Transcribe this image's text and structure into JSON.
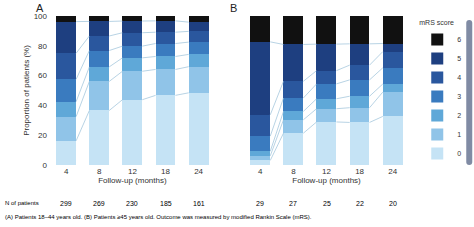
{
  "chart_data": [
    {
      "type": "bar",
      "title": "A",
      "stacked": true,
      "grid": false,
      "categories": [
        "4",
        "8",
        "12",
        "18",
        "24"
      ],
      "xlabel": "Follow-up (months)",
      "ylabel": "Proportion of patients (%)",
      "ylim": [
        0,
        100
      ],
      "yticks": [
        0,
        20,
        40,
        60,
        80,
        100
      ],
      "n_label": "N of patients",
      "n_patients": [
        299,
        269,
        230,
        185,
        161
      ],
      "series": [
        {
          "name": "0",
          "color": "#c5e3f5",
          "values": [
            16.25,
            36.58536585365854,
            43.82022471910112,
            46.73913043478261,
            48.45360824742268
          ]
        },
        {
          "name": "1",
          "color": "#90c4e8",
          "values": [
            16.25,
            19.51219512195122,
            19.101123595505616,
            17.391304347826086,
            17.52577319587629
          ]
        },
        {
          "name": "2",
          "color": "#5fa8d8",
          "values": [
            10.0,
            9.75609756097561,
            8.98876404494382,
            8.695652173913043,
            8.24742268041237
          ]
        },
        {
          "name": "3",
          "color": "#3a7bbf",
          "values": [
            15.0,
            10.975609756097562,
            7.865168539325842,
            8.695652173913043,
            8.24742268041237
          ]
        },
        {
          "name": "4",
          "color": "#2a579e",
          "values": [
            17.5,
            9.75609756097561,
            8.98876404494382,
            7.608695652173913,
            7.216494845360825
          ]
        },
        {
          "name": "5",
          "color": "#1e3f80",
          "values": [
            21.25,
            9.75609756097561,
            7.865168539325842,
            7.608695652173913,
            6.185567010309279
          ]
        },
        {
          "name": "6",
          "color": "#111111",
          "values": [
            3.75,
            3.658536585365854,
            3.3707865168539324,
            3.260869565217391,
            4.123711340206185
          ]
        }
      ]
    },
    {
      "type": "bar",
      "title": "B",
      "stacked": true,
      "grid": false,
      "tick_labels": "x",
      "categories": [
        "4",
        "8",
        "12",
        "18",
        "24"
      ],
      "xlabel": "Follow-up (months)",
      "ylim": [
        0,
        100
      ],
      "yticks": [
        0,
        20,
        40,
        60,
        80,
        100
      ],
      "n_patients": [
        29,
        27,
        25,
        22,
        20
      ],
      "legend": "right",
      "legend_title": "mRS score",
      "series": [
        {
          "name": "0",
          "color": "#c5e3f5",
          "values": [
            3.061224489795918,
            21.348314606741575,
            28.88888888888889,
            28.571428571428573,
            32.608695652173914
          ]
        },
        {
          "name": "1",
          "color": "#90c4e8",
          "values": [
            3.061224489795918,
            8.98876404494382,
            8.88888888888889,
            9.89010989010989,
            16.304347826086957
          ]
        },
        {
          "name": "2",
          "color": "#5fa8d8",
          "values": [
            3.061224489795918,
            5.617977528089887,
            6.666666666666667,
            7.6923076923076925,
            5.434782608695652
          ]
        },
        {
          "name": "3",
          "color": "#3a7bbf",
          "values": [
            10.204081632653061,
            8.98876404494382,
            10.0,
            10.989010989010989,
            10.869565217391305
          ]
        },
        {
          "name": "4",
          "color": "#2a579e",
          "values": [
            14.285714285714286,
            11.235955056179774,
            8.88888888888889,
            9.89010989010989,
            10.869565217391305
          ]
        },
        {
          "name": "5",
          "color": "#1e3f80",
          "values": [
            48.97959183673469,
            24.719101123595504,
            17.77777777777778,
            14.285714285714286,
            5.434782608695652
          ]
        },
        {
          "name": "6",
          "color": "#111111",
          "values": [
            17.346938775510203,
            19.101123595505616,
            18.88888888888889,
            18.681318681318682,
            18.478260869565215
          ]
        }
      ]
    }
  ],
  "caption": "(A) Patients 18–44 years old. (B) Patients ≥45 years old. Outcome was measured by modified Rankin Scale (mRS)."
}
